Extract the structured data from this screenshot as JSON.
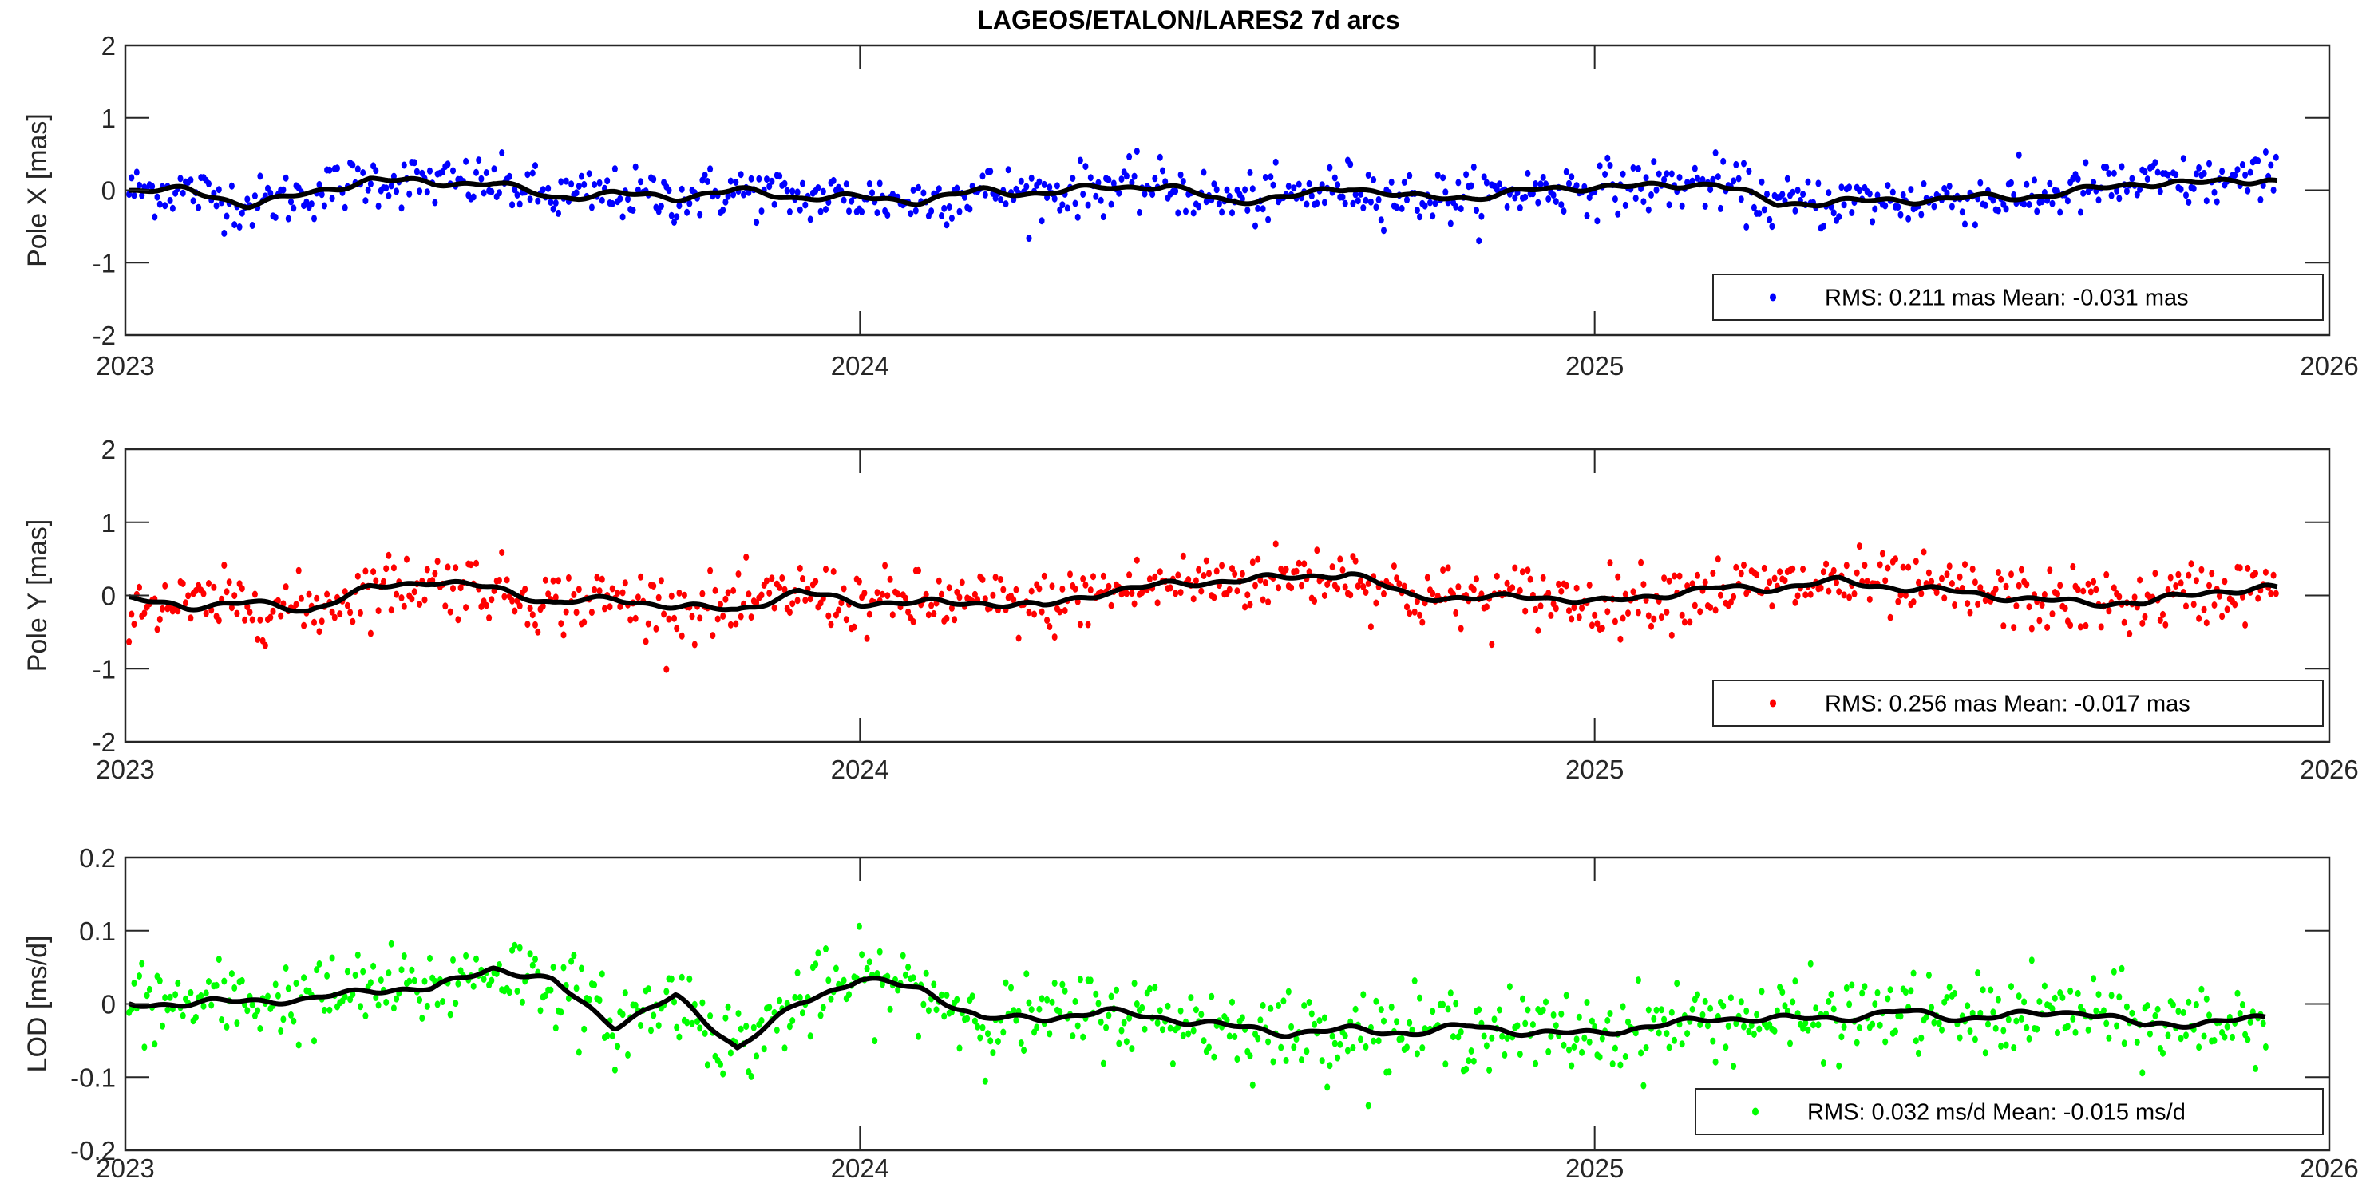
{
  "chart_data": [
    {
      "type": "scatter",
      "title": "LAGEOS/ETALON/LARES2 7d arcs",
      "ylabel": "Pole X [mas]",
      "xlabel": "",
      "xlim": [
        2023,
        2026
      ],
      "ylim": [
        -2,
        2
      ],
      "xticks": [
        "2023",
        "2024",
        "2025",
        "2026"
      ],
      "yticks": [
        "-2",
        "-1",
        "0",
        "1",
        "2"
      ],
      "ytick_values": [
        -2,
        -1,
        0,
        1,
        2
      ],
      "color": "#0000ff",
      "legend": "RMS: 0.211 mas  Mean: -0.031 mas",
      "legend_position": "bottom-right",
      "rms": 0.211,
      "mean": -0.031,
      "smooth_x_start": 2023.0,
      "smooth_x_step": 0.0833,
      "smooth": [
        0,
        0,
        -0.2,
        -0.05,
        0.15,
        0.1,
        0.1,
        -0.1,
        -0.05,
        -0.1,
        0,
        -0.1,
        -0.1,
        -0.15,
        0,
        -0.05,
        0.05,
        0.05,
        -0.15,
        -0.1,
        0.05,
        -0.1,
        -0.1,
        0,
        0.05,
        0.05,
        0.1,
        -0.2,
        -0.15,
        -0.15,
        -0.1,
        -0.1,
        0,
        0.1,
        0.1,
        0.15,
        0.05
      ]
    },
    {
      "type": "scatter",
      "ylabel": "Pole Y [mas]",
      "xlim": [
        2023,
        2026
      ],
      "ylim": [
        -2,
        2
      ],
      "xticks": [
        "2023",
        "2024",
        "2025",
        "2026"
      ],
      "yticks": [
        "-2",
        "-1",
        "0",
        "1",
        "2"
      ],
      "ytick_values": [
        -2,
        -1,
        0,
        1,
        2
      ],
      "color": "#ff0000",
      "legend": "RMS: 0.256 mas  Mean: -0.017 mas",
      "legend_position": "bottom-right",
      "rms": 0.256,
      "mean": -0.017,
      "smooth_x_start": 2023.0,
      "smooth_x_step": 0.0833,
      "smooth": [
        -0.05,
        -0.15,
        -0.1,
        -0.2,
        0.1,
        0.2,
        0.1,
        -0.1,
        -0.05,
        -0.15,
        -0.2,
        0.05,
        -0.1,
        -0.1,
        -0.1,
        -0.15,
        0.05,
        0.15,
        0.2,
        0.25,
        0.3,
        0,
        -0.05,
        0,
        -0.1,
        0,
        0.1,
        0.1,
        0.2,
        0.1,
        0.05,
        -0.05,
        -0.1,
        -0.1,
        0.05,
        0.1,
        0.05,
        -0.1
      ]
    },
    {
      "type": "scatter",
      "ylabel": "LOD [ms/d]",
      "xlim": [
        2023,
        2026
      ],
      "ylim": [
        -0.2,
        0.2
      ],
      "xticks": [
        "2023",
        "2024",
        "2025",
        "2026"
      ],
      "yticks": [
        "-0.2",
        "-0.1",
        "0",
        "0.1",
        "0.2"
      ],
      "ytick_values": [
        -0.2,
        -0.1,
        0,
        0.1,
        0.2
      ],
      "color": "#00ff00",
      "legend": "RMS: 0.032 ms/d  Mean: -0.015 ms/d",
      "legend_position": "bottom-right",
      "rms": 0.032,
      "mean": -0.015,
      "smooth_x_start": 2023.0,
      "smooth_x_step": 0.0833,
      "smooth": [
        0,
        0,
        0.005,
        0.005,
        0.02,
        0.02,
        0.05,
        0.03,
        -0.03,
        0.01,
        -0.06,
        0,
        0.035,
        0.02,
        -0.02,
        -0.02,
        -0.01,
        -0.02,
        -0.03,
        -0.04,
        -0.035,
        -0.04,
        -0.03,
        -0.04,
        -0.04,
        -0.03,
        -0.02,
        -0.02,
        -0.02,
        -0.01,
        -0.02,
        -0.015,
        -0.01,
        -0.03,
        -0.025,
        -0.02
      ]
    }
  ]
}
